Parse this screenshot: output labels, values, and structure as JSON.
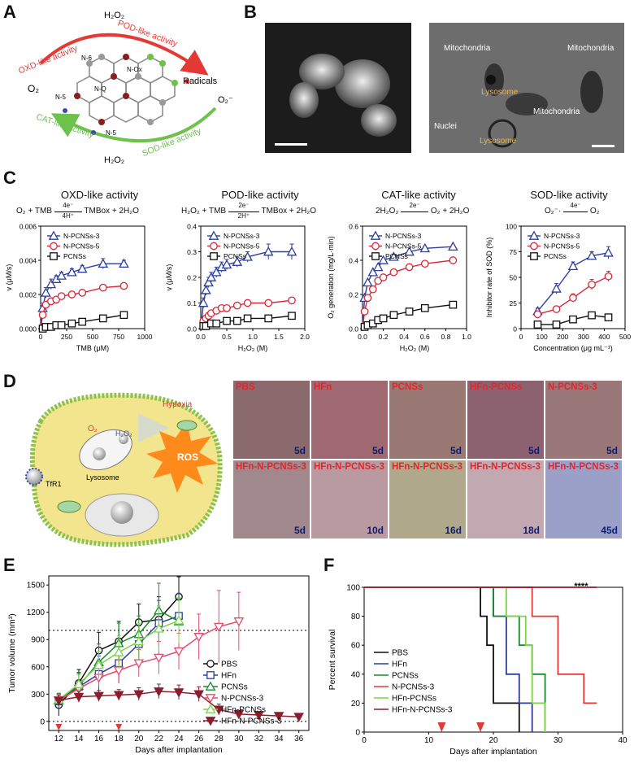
{
  "panels": {
    "A": "A",
    "B": "B",
    "C": "C",
    "D": "D",
    "E": "E",
    "F": "F"
  },
  "panelA": {
    "h2o2_top": "H₂O₂",
    "h2o2_bottom": "H₂O₂",
    "o2": "O₂",
    "o2_minus": "O₂⁻",
    "radicals": "Radicals",
    "oxd": "OXD-like activity",
    "pod": "POD-like activity",
    "cat": "CAT-like activity",
    "sod": "SOD-like activity",
    "n_labels": [
      "N-6",
      "N-5",
      "N-Ox",
      "N-Q",
      "N-5"
    ],
    "red": "#e53935",
    "green": "#6cc24a"
  },
  "panelB": {
    "mito_labels": [
      "Mitochondria",
      "Mitochondria",
      "Mitochondria"
    ],
    "lyso_labels": [
      "Lysosome",
      "Lysosome"
    ],
    "nuclei": "Nuclei"
  },
  "panelC": {
    "titles": [
      "OXD-like activity",
      "POD-like activity",
      "CAT-like activity",
      "SOD-like activity"
    ],
    "equations": [
      {
        "left": "O₂ + TMB",
        "above": "4e⁻",
        "below": "4H⁺",
        "right": "TMBox + 2H₂O"
      },
      {
        "left": "H₂O₂ + TMB",
        "above": "2e⁻",
        "below": "2H⁺",
        "right": "TMBox + 2H₂O"
      },
      {
        "left": "2H₂O₂",
        "above": "2e⁻",
        "below": "",
        "right": "O₂ + 2H₂O"
      },
      {
        "left": "O₂⁻·",
        "above": "4e⁻",
        "below": "",
        "right": "O₂"
      }
    ]
  },
  "panelD": {
    "hypoxia": "Hypoxia",
    "o2": "O₂",
    "h2o2": "H₂O₂",
    "ros": "ROS",
    "tfr1": "TfR1",
    "lysosome": "Lysosome",
    "photos": [
      {
        "label": "PBS",
        "day": "5d"
      },
      {
        "label": "HFn",
        "day": "5d"
      },
      {
        "label": "PCNSs",
        "day": "5d"
      },
      {
        "label": "HFn-PCNSs",
        "day": "5d"
      },
      {
        "label": "N-PCNSs-3",
        "day": "5d"
      },
      {
        "label": "HFn-N-PCNSs-3",
        "day": "5d"
      },
      {
        "label": "HFn-N-PCNSs-3",
        "day": "10d"
      },
      {
        "label": "HFn-N-PCNSs-3",
        "day": "16d"
      },
      {
        "label": "HFn-N-PCNSs-3",
        "day": "18d"
      },
      {
        "label": "HFn-N-PCNSs-3",
        "day": "45d"
      }
    ]
  },
  "chart_data": [
    {
      "id": "C1",
      "type": "scatter",
      "title": "OXD-like activity",
      "xlabel": "TMB (μM)",
      "ylabel": "v (μM/s)",
      "xlim": [
        0,
        1000
      ],
      "ylim": [
        0,
        0.006
      ],
      "xticks": [
        "0",
        "250",
        "500",
        "750",
        "1000"
      ],
      "yticks": [
        "0.000",
        "0.002",
        "0.004",
        "0.006"
      ],
      "series": [
        {
          "name": "N-PCNSs-3",
          "color": "#2c3e9e",
          "marker": "triangle",
          "x": [
            20,
            50,
            100,
            150,
            200,
            300,
            400,
            600,
            800
          ],
          "y": [
            0.0012,
            0.0021,
            0.0026,
            0.0029,
            0.0031,
            0.0033,
            0.0035,
            0.0038,
            0.0038
          ],
          "err": [
            0.0003,
            0.0003,
            0.0003,
            0.0002,
            0.0002,
            0.0002,
            0.0002,
            0.0003,
            0.0002
          ]
        },
        {
          "name": "N-PCNSs-5",
          "color": "#d62837",
          "marker": "circle",
          "x": [
            20,
            50,
            100,
            150,
            200,
            300,
            400,
            600,
            800
          ],
          "y": [
            0.0008,
            0.0014,
            0.0016,
            0.0017,
            0.0019,
            0.002,
            0.0021,
            0.0024,
            0.0025
          ],
          "err": [
            0.0002,
            0.0002,
            0.0002,
            0.0001,
            0.0001,
            0.0001,
            0.0001,
            0.0001,
            0.0001
          ]
        },
        {
          "name": "PCNSs",
          "color": "#111111",
          "marker": "square",
          "x": [
            20,
            50,
            100,
            150,
            200,
            300,
            400,
            600,
            800
          ],
          "y": [
            0.0,
            0.0001,
            0.0001,
            0.0002,
            0.0002,
            0.0003,
            0.0004,
            0.0006,
            0.0008
          ],
          "err": [
            0,
            0,
            0,
            0,
            0,
            0,
            0,
            0,
            0
          ]
        }
      ]
    },
    {
      "id": "C2",
      "type": "scatter",
      "title": "POD-like activity",
      "xlabel": "H₂O₂ (M)",
      "ylabel": "v (μM/s)",
      "xlim": [
        0,
        2.0
      ],
      "ylim": [
        0,
        0.4
      ],
      "xticks": [
        "0.0",
        "0.5",
        "1.0",
        "1.5",
        "2.0"
      ],
      "yticks": [
        "0.0",
        "0.1",
        "0.2",
        "0.3",
        "0.4"
      ],
      "series": [
        {
          "name": "N-PCNSs-3",
          "color": "#2c3e9e",
          "marker": "triangle",
          "x": [
            0.05,
            0.1,
            0.15,
            0.2,
            0.3,
            0.4,
            0.5,
            0.7,
            0.9,
            1.3,
            1.75
          ],
          "y": [
            0.1,
            0.15,
            0.18,
            0.2,
            0.22,
            0.24,
            0.25,
            0.26,
            0.28,
            0.3,
            0.3
          ],
          "err": [
            0.02,
            0.02,
            0.02,
            0.02,
            0.02,
            0.02,
            0.02,
            0.02,
            0.02,
            0.03,
            0.03
          ]
        },
        {
          "name": "N-PCNSs-5",
          "color": "#d62837",
          "marker": "circle",
          "x": [
            0.05,
            0.1,
            0.15,
            0.2,
            0.3,
            0.4,
            0.5,
            0.7,
            0.9,
            1.3,
            1.75
          ],
          "y": [
            0.03,
            0.04,
            0.05,
            0.06,
            0.07,
            0.08,
            0.08,
            0.09,
            0.1,
            0.1,
            0.11
          ],
          "err": [
            0.01,
            0.01,
            0.01,
            0.01,
            0.01,
            0.01,
            0.01,
            0.01,
            0.01,
            0.01,
            0.01
          ]
        },
        {
          "name": "PCNSs",
          "color": "#111111",
          "marker": "square",
          "x": [
            0.05,
            0.1,
            0.2,
            0.3,
            0.5,
            0.7,
            0.9,
            1.3,
            1.75
          ],
          "y": [
            0.01,
            0.01,
            0.02,
            0.02,
            0.03,
            0.03,
            0.04,
            0.04,
            0.05
          ],
          "err": [
            0,
            0,
            0,
            0,
            0,
            0,
            0,
            0,
            0
          ]
        }
      ]
    },
    {
      "id": "C3",
      "type": "scatter",
      "title": "CAT-like activity",
      "xlabel": "H₂O₂ (M)",
      "ylabel": "O₂ generation (mg/L·min)",
      "xlim": [
        0,
        1.0
      ],
      "ylim": [
        0,
        0.6
      ],
      "xticks": [
        "0.0",
        "0.2",
        "0.4",
        "0.6",
        "0.8",
        "1.0"
      ],
      "yticks": [
        "0.0",
        "0.2",
        "0.4",
        "0.6"
      ],
      "series": [
        {
          "name": "N-PCNSs-3",
          "color": "#2c3e9e",
          "marker": "triangle",
          "x": [
            0.02,
            0.05,
            0.1,
            0.15,
            0.2,
            0.3,
            0.45,
            0.6,
            0.87
          ],
          "y": [
            0.18,
            0.27,
            0.33,
            0.36,
            0.4,
            0.42,
            0.45,
            0.47,
            0.48
          ],
          "err": [
            0,
            0,
            0,
            0,
            0,
            0,
            0,
            0,
            0
          ]
        },
        {
          "name": "N-PCNSs-5",
          "color": "#d62837",
          "marker": "circle",
          "x": [
            0.02,
            0.05,
            0.1,
            0.15,
            0.2,
            0.3,
            0.45,
            0.6,
            0.87
          ],
          "y": [
            0.1,
            0.18,
            0.23,
            0.28,
            0.3,
            0.33,
            0.36,
            0.38,
            0.4
          ],
          "err": [
            0,
            0,
            0,
            0,
            0,
            0,
            0,
            0,
            0
          ]
        },
        {
          "name": "PCNSs",
          "color": "#111111",
          "marker": "square",
          "x": [
            0.02,
            0.05,
            0.1,
            0.15,
            0.2,
            0.3,
            0.45,
            0.6,
            0.87
          ],
          "y": [
            0.01,
            0.02,
            0.03,
            0.05,
            0.06,
            0.08,
            0.1,
            0.12,
            0.14
          ],
          "err": [
            0,
            0,
            0,
            0,
            0,
            0,
            0,
            0,
            0
          ]
        }
      ]
    },
    {
      "id": "C4",
      "type": "line",
      "title": "SOD-like activity",
      "xlabel": "Concentration (μg mL⁻¹)",
      "ylabel": "Inhibitor rate of SOD (%)",
      "xlim": [
        0,
        500
      ],
      "ylim": [
        0,
        100
      ],
      "xticks": [
        "0",
        "100",
        "200",
        "300",
        "400",
        "500"
      ],
      "yticks": [
        "0",
        "25",
        "50",
        "75",
        "100"
      ],
      "series": [
        {
          "name": "N-PCNSs-3",
          "color": "#2c3e9e",
          "marker": "triangle",
          "x": [
            80,
            170,
            250,
            340,
            420
          ],
          "y": [
            17,
            39,
            61,
            71,
            74
          ],
          "err": [
            3,
            5,
            4,
            4,
            6
          ]
        },
        {
          "name": "N-PCNSs-5",
          "color": "#d62837",
          "marker": "circle",
          "x": [
            80,
            170,
            250,
            340,
            420
          ],
          "y": [
            14,
            19,
            30,
            43,
            51
          ],
          "err": [
            2,
            2,
            4,
            5,
            5
          ]
        },
        {
          "name": "PCNSs",
          "color": "#111111",
          "marker": "square",
          "x": [
            80,
            170,
            250,
            340,
            420
          ],
          "y": [
            4,
            4,
            9,
            13,
            11
          ],
          "err": [
            1,
            1,
            2,
            2,
            1
          ]
        }
      ]
    },
    {
      "id": "E",
      "type": "line",
      "xlabel": "Days after implantation",
      "ylabel": "Tumor volume (mm³)",
      "xlim": [
        11,
        37
      ],
      "ylim": [
        -100,
        1600
      ],
      "xticks": [
        "12",
        "14",
        "16",
        "18",
        "20",
        "22",
        "24",
        "26",
        "28",
        "30",
        "32",
        "34",
        "36"
      ],
      "yticks": [
        "0",
        "300",
        "600",
        "900",
        "1200",
        "1500"
      ],
      "hlines": [
        0,
        1000
      ],
      "arrows_x": [
        12,
        18
      ],
      "series": [
        {
          "name": "PBS",
          "color": "#111111",
          "marker": "circle-open",
          "x": [
            12,
            14,
            16,
            18,
            20,
            22,
            24
          ],
          "y": [
            180,
            420,
            780,
            880,
            1090,
            1120,
            1370
          ],
          "err": [
            120,
            150,
            200,
            220,
            200,
            250,
            220
          ]
        },
        {
          "name": "HFn",
          "color": "#2c3e9e",
          "marker": "square-open",
          "x": [
            12,
            14,
            16,
            18,
            20,
            22,
            24
          ],
          "y": [
            220,
            380,
            520,
            640,
            850,
            1080,
            1160
          ],
          "err": [
            80,
            150,
            200,
            220,
            200,
            250,
            250
          ]
        },
        {
          "name": "PCNSs",
          "color": "#1a8a2e",
          "marker": "triangle-open",
          "x": [
            12,
            14,
            16,
            18,
            20,
            22,
            24
          ],
          "y": [
            230,
            390,
            650,
            860,
            960,
            1220,
            1100
          ],
          "err": [
            80,
            150,
            200,
            220,
            200,
            300,
            250
          ]
        },
        {
          "name": "N-PCNSs-3",
          "color": "#e54b6c",
          "marker": "tri-down-open",
          "x": [
            12,
            14,
            16,
            18,
            20,
            22,
            24,
            26,
            28,
            30
          ],
          "y": [
            230,
            360,
            480,
            560,
            640,
            700,
            770,
            930,
            1040,
            1100
          ],
          "err": [
            60,
            80,
            100,
            120,
            150,
            180,
            200,
            250,
            400,
            320
          ]
        },
        {
          "name": "HFn-PCNSs",
          "color": "#7cd34a",
          "marker": "triangle",
          "x": [
            12,
            14,
            16,
            18,
            20,
            22,
            24
          ],
          "y": [
            240,
            410,
            620,
            760,
            880,
            1020,
            1110
          ],
          "err": [
            60,
            100,
            150,
            180,
            200,
            250,
            250
          ]
        },
        {
          "name": "HFn-N-PCNSs-3",
          "color": "#8b1d2c",
          "marker": "tri-down",
          "x": [
            12,
            14,
            16,
            18,
            20,
            22,
            24,
            26,
            28,
            30,
            32,
            34,
            36
          ],
          "y": [
            230,
            270,
            280,
            290,
            300,
            330,
            320,
            300,
            130,
            80,
            70,
            60,
            50
          ],
          "err": [
            60,
            60,
            60,
            60,
            70,
            80,
            80,
            80,
            60,
            40,
            30,
            30,
            30
          ]
        }
      ]
    },
    {
      "id": "F",
      "type": "line",
      "step": true,
      "xlabel": "Days after implantation",
      "ylabel": "Percent survival",
      "xlim": [
        0,
        40
      ],
      "ylim": [
        0,
        100
      ],
      "xticks": [
        "0",
        "10",
        "20",
        "30",
        "40"
      ],
      "yticks": [
        "0",
        "20",
        "40",
        "60",
        "80",
        "100"
      ],
      "annotation": "****",
      "arrows_x": [
        12,
        18
      ],
      "series": [
        {
          "name": "PBS",
          "color": "#111111",
          "steps": [
            [
              0,
              100
            ],
            [
              18,
              80
            ],
            [
              19,
              60
            ],
            [
              20,
              20
            ],
            [
              24,
              0
            ]
          ]
        },
        {
          "name": "HFn",
          "color": "#2c3e9e",
          "steps": [
            [
              0,
              100
            ],
            [
              20,
              80
            ],
            [
              22,
              40
            ],
            [
              24,
              20
            ],
            [
              26,
              0
            ]
          ]
        },
        {
          "name": "PCNSs",
          "color": "#1a8a2e",
          "steps": [
            [
              0,
              100
            ],
            [
              20,
              80
            ],
            [
              24,
              60
            ],
            [
              26,
              40
            ],
            [
              28,
              0
            ]
          ]
        },
        {
          "name": "N-PCNSs-3",
          "color": "#e53935",
          "steps": [
            [
              0,
              100
            ],
            [
              26,
              80
            ],
            [
              30,
              40
            ],
            [
              34,
              20
            ],
            [
              36,
              20
            ]
          ]
        },
        {
          "name": "HFn-PCNSs",
          "color": "#7cd34a",
          "steps": [
            [
              0,
              100
            ],
            [
              22,
              80
            ],
            [
              25,
              60
            ],
            [
              26,
              20
            ],
            [
              28,
              0
            ]
          ]
        },
        {
          "name": "HFn-N-PCNSs-3",
          "color": "#8b1d2c",
          "steps": [
            [
              0,
              100
            ],
            [
              36,
              100
            ]
          ]
        }
      ]
    }
  ]
}
